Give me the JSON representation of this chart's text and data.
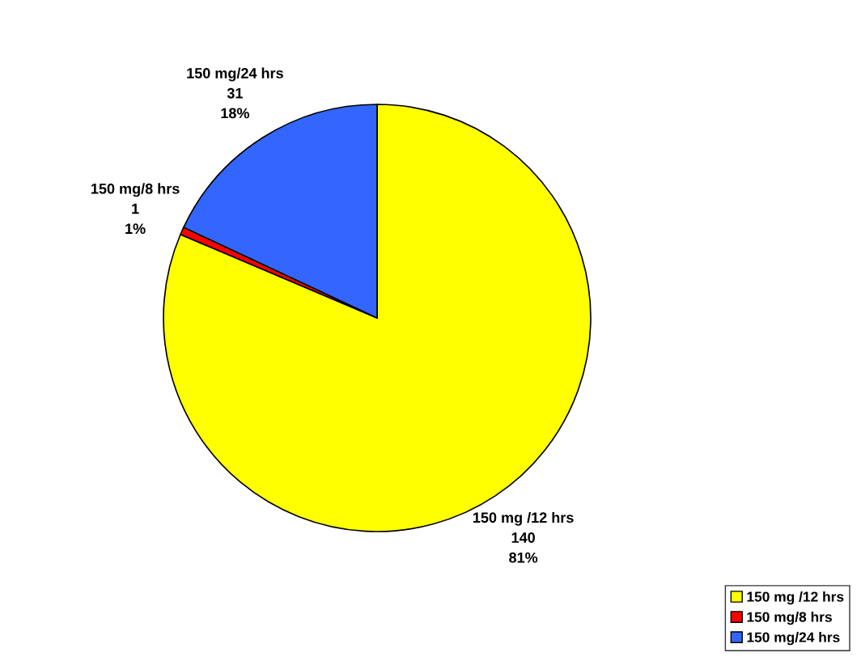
{
  "chart_data": {
    "type": "pie",
    "categories": [
      "150 mg /12 hrs",
      "150 mg/8 hrs",
      "150 mg/24 hrs"
    ],
    "values": [
      140,
      1,
      31
    ],
    "colors": [
      "#ffff00",
      "#ff0000",
      "#3366ff"
    ],
    "value_labels": [
      "140\n81%",
      "1\n1%",
      "31\n18%"
    ],
    "legend": "bottom right"
  }
}
